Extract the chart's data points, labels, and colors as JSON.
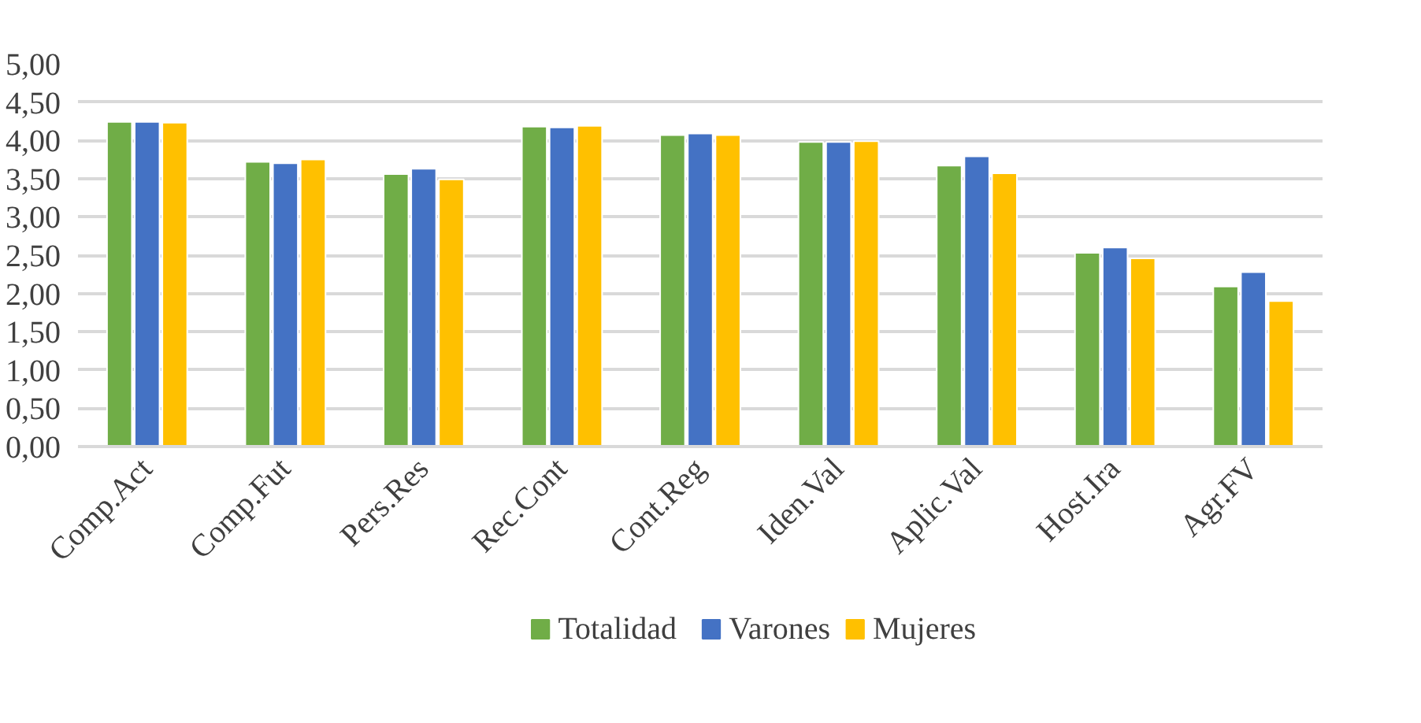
{
  "chart_data": {
    "type": "bar",
    "categories": [
      "Comp.Act",
      "Comp.Fut",
      "Pers.Res",
      "Rec.Cont",
      "Cont.Reg",
      "Iden.Val",
      "Aplic.Val",
      "Host.Ira",
      "Agr.FV"
    ],
    "series": [
      {
        "name": "Totalidad",
        "color": "#70ad47",
        "values": [
          4.24,
          3.72,
          3.56,
          4.18,
          4.07,
          3.98,
          3.67,
          2.53,
          2.09
        ]
      },
      {
        "name": "Varones",
        "color": "#4472c4",
        "values": [
          4.24,
          3.7,
          3.63,
          4.17,
          4.09,
          3.98,
          3.79,
          2.6,
          2.28
        ]
      },
      {
        "name": "Mujeres",
        "color": "#ffc000",
        "values": [
          4.23,
          3.75,
          3.49,
          4.19,
          4.07,
          3.99,
          3.57,
          2.46,
          1.9
        ]
      }
    ],
    "ylim": [
      0,
      5
    ],
    "yticks": [
      {
        "value": 0,
        "label": "0,00"
      },
      {
        "value": 0.5,
        "label": "0,50"
      },
      {
        "value": 1,
        "label": "1,00"
      },
      {
        "value": 1.5,
        "label": "1,50"
      },
      {
        "value": 2,
        "label": "2,00"
      },
      {
        "value": 2.5,
        "label": "2,50"
      },
      {
        "value": 3,
        "label": "3,00"
      },
      {
        "value": 3.5,
        "label": "3,50"
      },
      {
        "value": 4,
        "label": "4,00"
      },
      {
        "value": 4.5,
        "label": "4,50"
      },
      {
        "value": 5,
        "label": "5,00"
      }
    ],
    "grid": "y",
    "legend": "bottom"
  }
}
